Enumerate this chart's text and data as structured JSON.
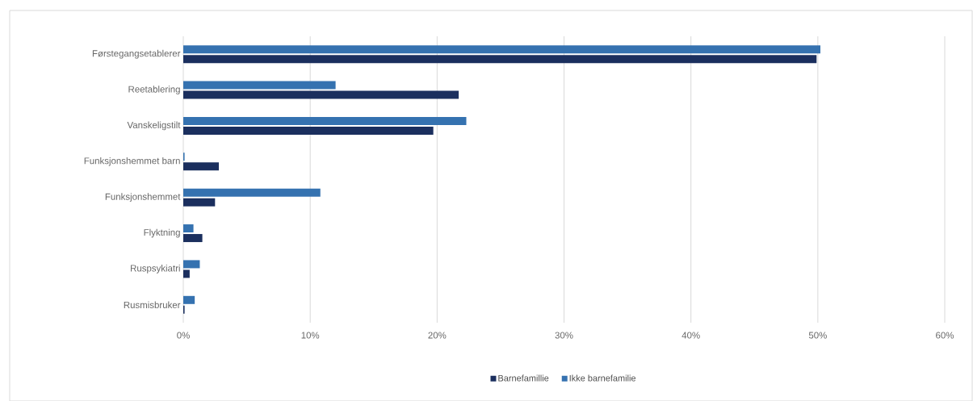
{
  "chart_data": {
    "type": "bar",
    "orientation": "horizontal",
    "categories": [
      "Førstegangsetablerer",
      "Reetablering",
      "Vanskeligstilt",
      "Funksjonshemmet barn",
      "Funksjonshemmet",
      "Flyktning",
      "Ruspsykiatri",
      "Rusmisbruker"
    ],
    "series": [
      {
        "name": "Barnefamillie",
        "color": "#1b2f5e",
        "values": [
          49.9,
          21.7,
          19.7,
          2.8,
          2.5,
          1.5,
          0.5,
          0.1
        ]
      },
      {
        "name": "Ikke barnefamilie",
        "color": "#3572b0",
        "values": [
          50.2,
          12.0,
          22.3,
          0.1,
          10.8,
          0.8,
          1.3,
          0.9
        ]
      }
    ],
    "xlim": [
      0,
      60
    ],
    "xticks": [
      {
        "value": 0,
        "label": "0%"
      },
      {
        "value": 10,
        "label": "10%"
      },
      {
        "value": 20,
        "label": "20%"
      },
      {
        "value": 30,
        "label": "30%"
      },
      {
        "value": 40,
        "label": "40%"
      },
      {
        "value": 50,
        "label": "50%"
      },
      {
        "value": 60,
        "label": "60%"
      }
    ],
    "grid": "x",
    "legend": "bottom"
  }
}
